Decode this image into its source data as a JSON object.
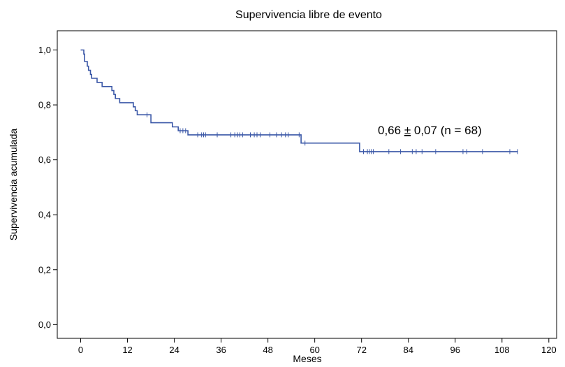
{
  "chart_data": {
    "type": "line",
    "title": "Supervivencia libre de evento",
    "xlabel": "Meses",
    "ylabel": "Supervivencia acumulada",
    "xlim": [
      -6,
      122
    ],
    "ylim": [
      -0.05,
      1.07
    ],
    "x_ticks": [
      0,
      12,
      24,
      36,
      48,
      60,
      72,
      84,
      96,
      108,
      120
    ],
    "x_tick_labels": [
      "0",
      "12",
      "24",
      "36",
      "48",
      "60",
      "72",
      "84",
      "96",
      "108",
      "120"
    ],
    "y_ticks": [
      0.0,
      0.2,
      0.4,
      0.6,
      0.8,
      1.0
    ],
    "y_tick_labels": [
      "0,0",
      "0,2",
      "0,4",
      "0,6",
      "0,8",
      "1,0"
    ],
    "grid": false,
    "legend": "none",
    "line_color": "#3a57a7",
    "annotation": {
      "pre": "0,66 ",
      "pm": "±",
      "post": " 0,07 (n = 68)"
    },
    "series": [
      {
        "steps": [
          [
            0,
            1.0
          ],
          [
            0.8,
            0.985
          ],
          [
            1.0,
            0.958
          ],
          [
            1.7,
            0.941
          ],
          [
            2.0,
            0.926
          ],
          [
            2.5,
            0.911
          ],
          [
            2.8,
            0.897
          ],
          [
            4.2,
            0.882
          ],
          [
            5.5,
            0.867
          ],
          [
            8.0,
            0.852
          ],
          [
            8.5,
            0.838
          ],
          [
            8.9,
            0.823
          ],
          [
            10.0,
            0.808
          ],
          [
            13.5,
            0.793
          ],
          [
            14.0,
            0.779
          ],
          [
            14.5,
            0.764
          ],
          [
            18.0,
            0.735
          ],
          [
            23.5,
            0.72
          ],
          [
            25.0,
            0.706
          ],
          [
            27.5,
            0.691
          ],
          [
            56.5,
            0.661
          ],
          [
            71.5,
            0.63
          ]
        ],
        "x_end": 112,
        "censored": [
          [
            17.0,
            0.764
          ],
          [
            25.5,
            0.706
          ],
          [
            26.2,
            0.706
          ],
          [
            26.9,
            0.706
          ],
          [
            30.0,
            0.691
          ],
          [
            31.0,
            0.691
          ],
          [
            31.5,
            0.691
          ],
          [
            32.0,
            0.691
          ],
          [
            35.0,
            0.691
          ],
          [
            38.5,
            0.691
          ],
          [
            39.5,
            0.691
          ],
          [
            40.2,
            0.691
          ],
          [
            40.8,
            0.691
          ],
          [
            41.5,
            0.691
          ],
          [
            43.5,
            0.691
          ],
          [
            44.5,
            0.691
          ],
          [
            45.2,
            0.691
          ],
          [
            46.0,
            0.691
          ],
          [
            48.5,
            0.691
          ],
          [
            50.2,
            0.691
          ],
          [
            51.5,
            0.691
          ],
          [
            52.5,
            0.691
          ],
          [
            53.2,
            0.691
          ],
          [
            56.0,
            0.691
          ],
          [
            57.5,
            0.661
          ],
          [
            72.5,
            0.63
          ],
          [
            73.5,
            0.63
          ],
          [
            74.0,
            0.63
          ],
          [
            74.5,
            0.63
          ],
          [
            75.0,
            0.63
          ],
          [
            79.0,
            0.63
          ],
          [
            82.0,
            0.63
          ],
          [
            85.0,
            0.63
          ],
          [
            86.0,
            0.63
          ],
          [
            87.5,
            0.63
          ],
          [
            91.0,
            0.63
          ],
          [
            98.0,
            0.63
          ],
          [
            99.0,
            0.63
          ],
          [
            103.0,
            0.63
          ],
          [
            110.0,
            0.63
          ],
          [
            112.0,
            0.63
          ]
        ]
      }
    ]
  }
}
